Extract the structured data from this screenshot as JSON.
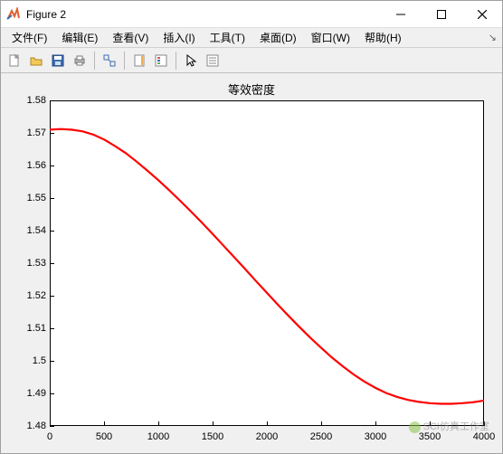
{
  "window": {
    "title": "Figure 2",
    "icon_colors": {
      "top": "#d9534f",
      "mid": "#5bc0de",
      "bot": "#f0ad4e"
    }
  },
  "menu": {
    "items": [
      "文件(F)",
      "编辑(E)",
      "查看(V)",
      "插入(I)",
      "工具(T)",
      "桌面(D)",
      "窗口(W)",
      "帮助(H)"
    ],
    "tail_glyph": "↘"
  },
  "toolbar": {
    "groups": [
      [
        "new-file",
        "open-file",
        "save",
        "print"
      ],
      [
        "link-axes"
      ],
      [
        "colorbar",
        "legend"
      ],
      [
        "pointer",
        "list-props"
      ]
    ]
  },
  "chart": {
    "type": "line",
    "title": "等效密度",
    "title_fontsize": 13,
    "background_color": "#ffffff",
    "canvas_color": "#f0f0f0",
    "axis_color": "#000000",
    "tick_fontsize": 11,
    "xlim": [
      0,
      4000
    ],
    "ylim": [
      1.48,
      1.58
    ],
    "xticks": [
      0,
      500,
      1000,
      1500,
      2000,
      2500,
      3000,
      3500,
      4000
    ],
    "yticks": [
      1.48,
      1.49,
      1.5,
      1.51,
      1.52,
      1.53,
      1.54,
      1.55,
      1.56,
      1.57,
      1.58
    ],
    "ytick_labels": [
      "1.48",
      "1.49",
      "1.5",
      "1.51",
      "1.52",
      "1.53",
      "1.54",
      "1.55",
      "1.56",
      "1.57",
      "1.58"
    ],
    "series": [
      {
        "name": "density-curve",
        "color": "#ff0000",
        "line_width": 2.2,
        "data": [
          [
            0,
            1.571
          ],
          [
            100,
            1.5712
          ],
          [
            200,
            1.571
          ],
          [
            300,
            1.5705
          ],
          [
            400,
            1.5695
          ],
          [
            500,
            1.568
          ],
          [
            600,
            1.566
          ],
          [
            700,
            1.5638
          ],
          [
            800,
            1.5612
          ],
          [
            900,
            1.5584
          ],
          [
            1000,
            1.5555
          ],
          [
            1100,
            1.5524
          ],
          [
            1200,
            1.5492
          ],
          [
            1300,
            1.5459
          ],
          [
            1400,
            1.5425
          ],
          [
            1500,
            1.539
          ],
          [
            1600,
            1.5354
          ],
          [
            1700,
            1.5318
          ],
          [
            1800,
            1.5282
          ],
          [
            1900,
            1.5245
          ],
          [
            2000,
            1.5209
          ],
          [
            2100,
            1.5173
          ],
          [
            2200,
            1.5138
          ],
          [
            2300,
            1.5104
          ],
          [
            2400,
            1.5071
          ],
          [
            2500,
            1.504
          ],
          [
            2600,
            1.501
          ],
          [
            2700,
            1.4983
          ],
          [
            2800,
            1.4958
          ],
          [
            2900,
            1.4936
          ],
          [
            3000,
            1.4917
          ],
          [
            3100,
            1.4901
          ],
          [
            3200,
            1.4889
          ],
          [
            3300,
            1.488
          ],
          [
            3400,
            1.4874
          ],
          [
            3500,
            1.487
          ],
          [
            3600,
            1.4868
          ],
          [
            3700,
            1.4868
          ],
          [
            3800,
            1.487
          ],
          [
            3900,
            1.4873
          ],
          [
            4000,
            1.4878
          ]
        ]
      }
    ]
  },
  "watermark": {
    "text": "SCI仿真工作室"
  }
}
